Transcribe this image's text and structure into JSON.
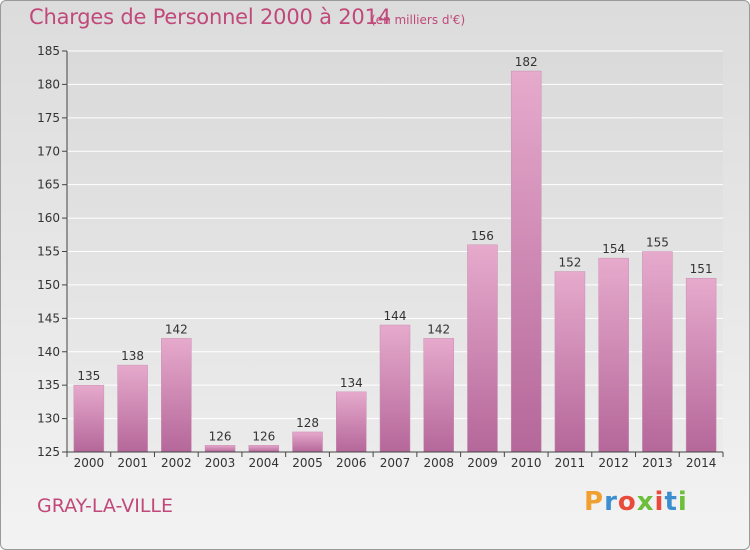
{
  "header": {
    "title": "Charges de Personnel 2000 à 2014",
    "subtitle": "(en milliers d'€)"
  },
  "footer": {
    "place": "GRAY-LA-VILLE",
    "logo_text": "Proxiti",
    "logo_colors": [
      "#f0a030",
      "#3b8fd0",
      "#e84a3b",
      "#6cbf3a",
      "#e84a3b",
      "#3b8fd0",
      "#6cbf3a"
    ]
  },
  "colors": {
    "bar_light": "#e3a6c9",
    "bar_dark": "#b5679a",
    "accent": "#c0497a",
    "grid": "#ffffff",
    "axis": "#444444"
  },
  "chart_data": {
    "type": "bar",
    "categories": [
      "2000",
      "2001",
      "2002",
      "2003",
      "2004",
      "2005",
      "2006",
      "2007",
      "2008",
      "2009",
      "2010",
      "2011",
      "2012",
      "2013",
      "2014"
    ],
    "values": [
      135,
      138,
      142,
      126,
      126,
      128,
      134,
      144,
      142,
      156,
      182,
      152,
      154,
      155,
      151
    ],
    "ylim": [
      125,
      185
    ],
    "yticks": [
      125,
      130,
      135,
      140,
      145,
      150,
      155,
      160,
      165,
      170,
      175,
      180,
      185
    ],
    "grid": true,
    "xlabel": "",
    "ylabel": ""
  }
}
